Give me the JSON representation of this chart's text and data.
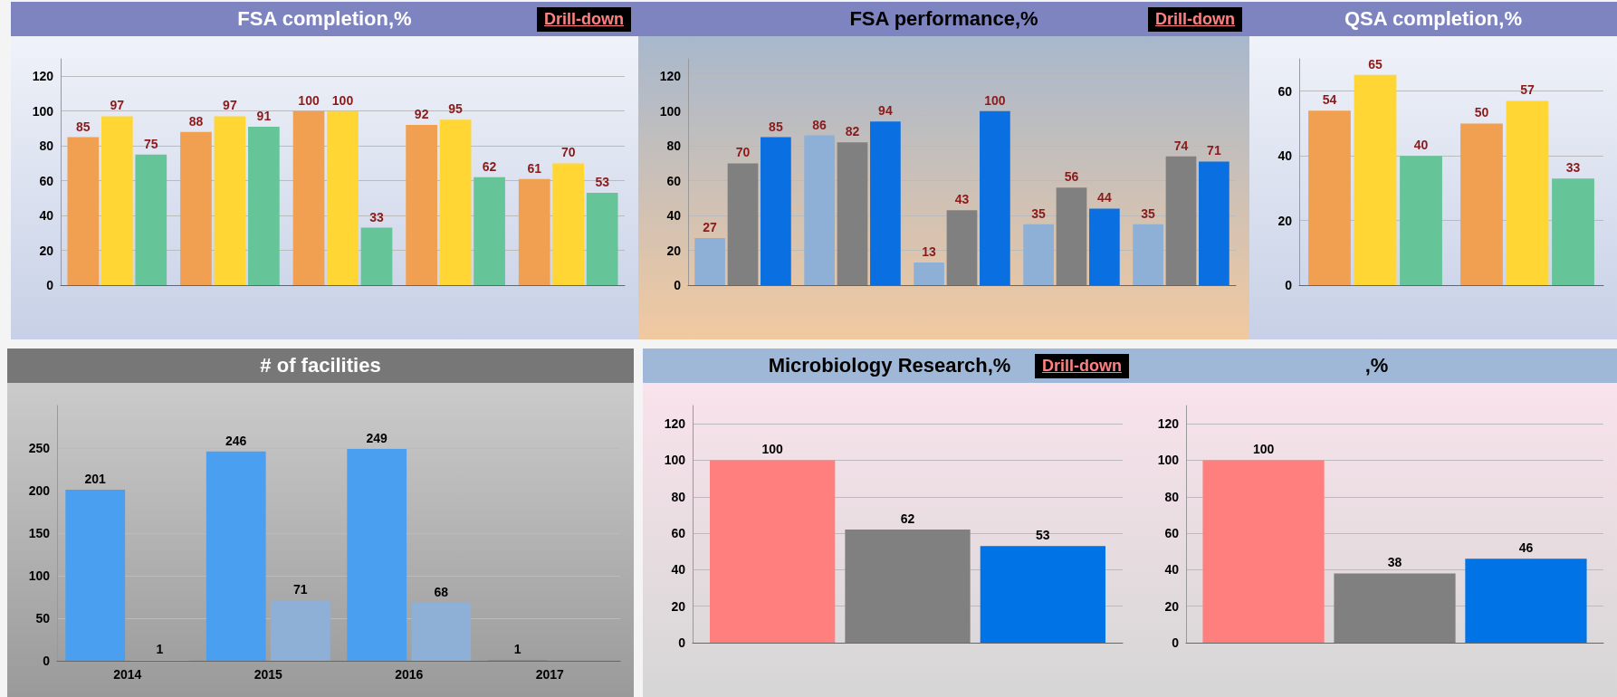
{
  "chart_data": [
    {
      "type": "bar",
      "title": "FSA completion,%",
      "annotations": [
        "Drill-down"
      ],
      "categories": [
        null,
        null,
        null,
        null,
        null
      ],
      "series": [
        {
          "color": "#f0a050",
          "values": [
            85,
            88,
            100,
            92,
            61
          ]
        },
        {
          "color": "#ffd633",
          "values": [
            97,
            97,
            100,
            95,
            70
          ]
        },
        {
          "color": "#66c499",
          "values": [
            75,
            91,
            33,
            62,
            53
          ]
        }
      ],
      "ylim": [
        0,
        130
      ],
      "yticks": [
        0,
        20,
        40,
        60,
        80,
        100,
        120
      ],
      "grid": "y",
      "data_labels": true
    },
    {
      "type": "bar",
      "title": "FSA performance,%",
      "annotations": [
        "Drill-down"
      ],
      "categories": [
        null,
        null,
        null,
        null,
        null
      ],
      "series": [
        {
          "color": "#8fb0d6",
          "values": [
            27,
            86,
            13,
            35,
            35
          ]
        },
        {
          "color": "#808080",
          "values": [
            70,
            82,
            43,
            56,
            74
          ]
        },
        {
          "color": "#0a6fe0",
          "values": [
            85,
            94,
            100,
            44,
            71
          ]
        }
      ],
      "ylim": [
        0,
        130
      ],
      "yticks": [
        0,
        20,
        40,
        60,
        80,
        100,
        120
      ],
      "grid": "y",
      "data_labels": true
    },
    {
      "type": "bar",
      "title": "QSA completion,%",
      "categories": [
        null,
        null
      ],
      "series": [
        {
          "color": "#f0a050",
          "values": [
            54,
            50
          ]
        },
        {
          "color": "#ffd633",
          "values": [
            65,
            57
          ]
        },
        {
          "color": "#66c499",
          "values": [
            40,
            33
          ]
        }
      ],
      "ylim": [
        0,
        70
      ],
      "yticks": [
        0,
        20,
        40,
        60
      ],
      "grid": "y",
      "data_labels": true
    },
    {
      "type": "bar",
      "title": "# of facilities",
      "categories": [
        "2014",
        "2015",
        "2016",
        "2017"
      ],
      "series": [
        {
          "color": "#4a9ff0",
          "values": [
            201,
            246,
            249,
            1
          ]
        },
        {
          "color": "#8fb0d6",
          "values": [
            1,
            71,
            68,
            null
          ]
        }
      ],
      "ylim": [
        0,
        300
      ],
      "yticks": [
        0,
        50,
        100,
        150,
        200,
        250
      ],
      "grid": "y",
      "data_labels": true
    },
    {
      "type": "bar",
      "title": "Microbiology Research,%",
      "annotations": [
        "Drill-down"
      ],
      "categories": [
        null
      ],
      "series": [
        {
          "color": "#ff7f7f",
          "values": [
            100
          ]
        },
        {
          "color": "#808080",
          "values": [
            62
          ]
        },
        {
          "color": "#0073e6",
          "values": [
            53
          ]
        }
      ],
      "ylim": [
        0,
        130
      ],
      "yticks": [
        0,
        20,
        40,
        60,
        80,
        100,
        120
      ],
      "grid": "y",
      "data_labels": true
    },
    {
      "type": "bar",
      "title": ",%",
      "categories": [
        null
      ],
      "series": [
        {
          "color": "#ff7f7f",
          "values": [
            100
          ]
        },
        {
          "color": "#808080",
          "values": [
            38
          ]
        },
        {
          "color": "#0073e6",
          "values": [
            46
          ]
        }
      ],
      "ylim": [
        0,
        130
      ],
      "yticks": [
        0,
        20,
        40,
        60,
        80,
        100,
        120
      ],
      "grid": "y",
      "data_labels": true
    }
  ]
}
